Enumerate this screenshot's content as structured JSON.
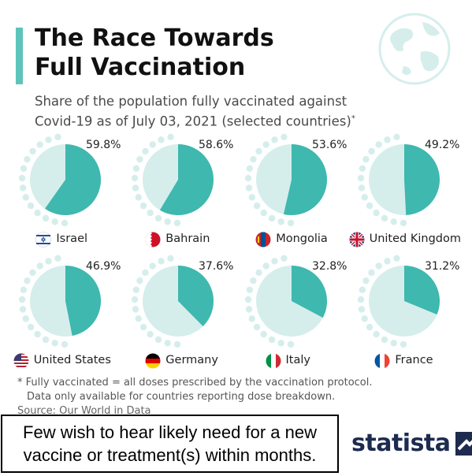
{
  "header": {
    "title_line1": "The Race Towards",
    "title_line2": "Full Vaccination",
    "subtitle_line1": "Share of the population fully vaccinated against",
    "subtitle_line2": "Covid-19 as of July 03, 2021 (selected countries)",
    "subtitle_mark": "*"
  },
  "colors": {
    "accent": "#5ec4bb",
    "slice": "#3fb8af",
    "background_slice": "#d5eeec",
    "dots": "#d5eeec",
    "globe": "#d5eeec"
  },
  "chart_data": {
    "type": "pie",
    "unit": "%",
    "categories": [
      "Israel",
      "Bahrain",
      "Mongolia",
      "United Kingdom",
      "United States",
      "Germany",
      "Italy",
      "France"
    ],
    "values": [
      59.8,
      58.6,
      53.6,
      49.2,
      46.9,
      37.6,
      32.8,
      31.2
    ],
    "value_labels": [
      "59.8%",
      "58.6%",
      "53.6%",
      "49.2%",
      "46.9%",
      "37.6%",
      "32.8%",
      "31.2%"
    ],
    "flags": [
      "israel-flag-icon",
      "bahrain-flag-icon",
      "mongolia-flag-icon",
      "uk-flag-icon",
      "us-flag-icon",
      "germany-flag-icon",
      "italy-flag-icon",
      "france-flag-icon"
    ]
  },
  "footnote": {
    "line1": "* Fully vaccinated = all doses prescribed by the vaccination protocol.",
    "line2": "Data only available for countries reporting dose breakdown."
  },
  "source": "Source: Our World in Data",
  "caption": {
    "line1": "Few wish to hear likely need for a new",
    "line2": "vaccine or treatment(s) within months."
  },
  "brand": {
    "name": "statista"
  }
}
